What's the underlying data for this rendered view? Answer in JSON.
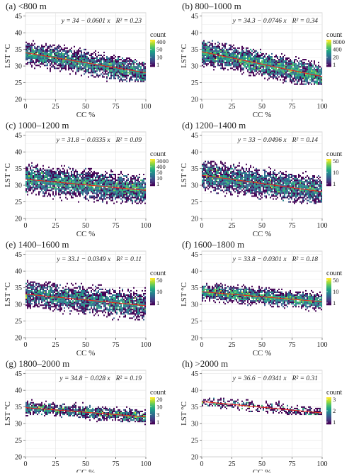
{
  "figure": {
    "colorbar_title": "count",
    "x_label": "CC %",
    "y_label": "LST °C",
    "x_ticks": [
      0,
      25,
      50,
      75,
      100
    ],
    "y_ticks": [
      20,
      25,
      30,
      35,
      40,
      45
    ],
    "viridis": [
      "#440154",
      "#46337e",
      "#365c8d",
      "#277f8e",
      "#1fa187",
      "#4ac16d",
      "#a0da39",
      "#fde725"
    ],
    "fit_line_color": "#e8291c",
    "panel_bg": "#ffffff",
    "grid_color": "#e6e6e6",
    "frame_color": "#c8c8c8"
  },
  "chart_data": [
    {
      "type": "heatmap",
      "title": "(a) <800 m",
      "xlabel": "CC %",
      "ylabel": "LST °C",
      "xlim": [
        0,
        100
      ],
      "ylim": [
        20,
        46
      ],
      "equation": "y = 34 − 0.0601 x",
      "r2": "R² = 0.23",
      "intercept": 34,
      "slope": -0.0601,
      "colorbar_ticks": [
        "400",
        "50",
        "10",
        "1"
      ],
      "density": {
        "lo0": 24.5,
        "lo1": 25.5,
        "hi0": 40.5,
        "hi1": 31.0,
        "xmin": 0,
        "xmax": 100,
        "n": 2600,
        "spread": 3.2
      }
    },
    {
      "type": "heatmap",
      "title": "(b) 800–1000 m",
      "xlabel": "CC %",
      "ylabel": "LST °C",
      "xlim": [
        0,
        100
      ],
      "ylim": [
        20,
        46
      ],
      "equation": "y = 34.3 − 0.0746 x",
      "r2": "R² = 0.34",
      "intercept": 34.3,
      "slope": -0.0746,
      "colorbar_ticks": [
        "8000",
        "400",
        "20",
        "1"
      ],
      "density": {
        "lo0": 23.5,
        "lo1": 24.5,
        "hi0": 43.5,
        "hi1": 30.5,
        "xmin": 0,
        "xmax": 100,
        "n": 3200,
        "spread": 3.3
      }
    },
    {
      "type": "heatmap",
      "title": "(c) 1000–1200 m",
      "xlabel": "CC %",
      "ylabel": "LST °C",
      "xlim": [
        0,
        100
      ],
      "ylim": [
        20,
        46
      ],
      "equation": "y = 31.8 − 0.0335 x",
      "r2": "R² = 0.09",
      "intercept": 31.8,
      "slope": -0.0335,
      "colorbar_ticks": [
        "3000",
        "400",
        "50",
        "10",
        "1"
      ],
      "density": {
        "lo0": 24.5,
        "lo1": 24.5,
        "hi0": 44.5,
        "hi1": 34.5,
        "xmin": 0,
        "xmax": 100,
        "n": 3200,
        "spread": 3.8
      }
    },
    {
      "type": "heatmap",
      "title": "(d) 1200–1400 m",
      "xlabel": "CC %",
      "ylabel": "LST °C",
      "xlim": [
        0,
        100
      ],
      "ylim": [
        20,
        46
      ],
      "equation": "y = 33 − 0.0496 x",
      "r2": "R² = 0.14",
      "intercept": 33,
      "slope": -0.0496,
      "colorbar_ticks": [
        "50",
        "10",
        "1"
      ],
      "density": {
        "lo0": 24.5,
        "lo1": 24.5,
        "hi0": 44.0,
        "hi1": 34.0,
        "xmin": 0,
        "xmax": 100,
        "n": 3000,
        "spread": 3.8
      }
    },
    {
      "type": "heatmap",
      "title": "(e) 1400–1600 m",
      "xlabel": "CC %",
      "ylabel": "LST °C",
      "xlim": [
        0,
        100
      ],
      "ylim": [
        20,
        46
      ],
      "equation": "y = 33.1 − 0.0349 x",
      "r2": "R² = 0.11",
      "intercept": 33.1,
      "slope": -0.0349,
      "colorbar_ticks": [
        "50",
        "10",
        "1"
      ],
      "density": {
        "lo0": 25.5,
        "lo1": 24.5,
        "hi0": 44.5,
        "hi1": 37.0,
        "xmin": 0,
        "xmax": 100,
        "n": 2600,
        "spread": 3.6
      }
    },
    {
      "type": "heatmap",
      "title": "(f) 1600–1800 m",
      "xlabel": "CC %",
      "ylabel": "LST °C",
      "xlim": [
        0,
        100
      ],
      "ylim": [
        20,
        46
      ],
      "equation": "y = 33.8 − 0.0301 x",
      "r2": "R² = 0.18",
      "intercept": 33.8,
      "slope": -0.0301,
      "colorbar_ticks": [
        "50",
        "10",
        "1"
      ],
      "density": {
        "lo0": 28.5,
        "lo1": 25.0,
        "hi0": 40.5,
        "hi1": 35.5,
        "xmin": 0,
        "xmax": 100,
        "n": 2200,
        "spread": 2.2
      }
    },
    {
      "type": "heatmap",
      "title": "(g) 1800–2000 m",
      "xlabel": "CC %",
      "ylabel": "LST °C",
      "xlim": [
        0,
        100
      ],
      "ylim": [
        20,
        46
      ],
      "equation": "y = 34.8 − 0.028 x",
      "r2": "R² = 0.19",
      "intercept": 34.8,
      "slope": -0.028,
      "colorbar_ticks": [
        "20",
        "10",
        "3",
        "1"
      ],
      "density": {
        "lo0": 31.5,
        "lo1": 27.0,
        "hi0": 38.5,
        "hi1": 35.0,
        "xmin": 0,
        "xmax": 100,
        "n": 1300,
        "spread": 1.8
      }
    },
    {
      "type": "heatmap",
      "title": "(h) >2000 m",
      "xlabel": "CC %",
      "ylabel": "LST °C",
      "xlim": [
        0,
        100
      ],
      "ylim": [
        20,
        46
      ],
      "equation": "y = 36.6 − 0.0341 x",
      "r2": "R² = 0.31",
      "intercept": 36.6,
      "slope": -0.0341,
      "colorbar_ticks": [
        "3",
        "2",
        "1"
      ],
      "density": {
        "lo0": 33.5,
        "lo1": 32.5,
        "hi0": 41.0,
        "hi1": 34.5,
        "xmin": 0,
        "xmax": 100,
        "n": 380,
        "spread": 1.6
      }
    }
  ]
}
